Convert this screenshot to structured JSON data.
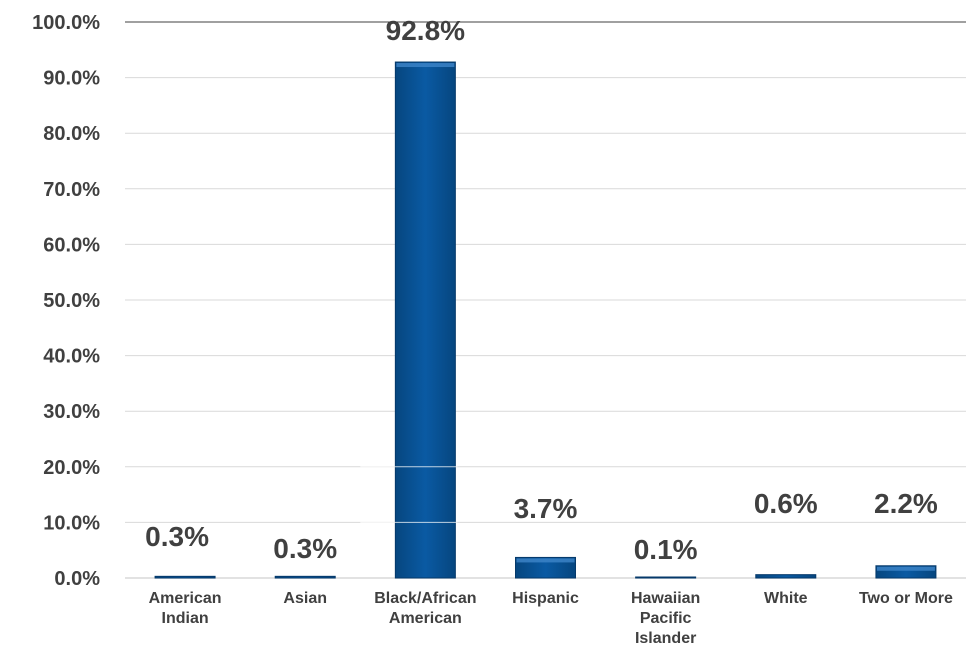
{
  "chart_data": {
    "type": "bar",
    "title": "",
    "xlabel": "",
    "ylabel": "",
    "ylim": [
      0,
      100
    ],
    "grid": true,
    "legend": "none",
    "bar_color": "#0a5aa3",
    "yticks": [
      "0.0%",
      "10.0%",
      "20.0%",
      "30.0%",
      "40.0%",
      "50.0%",
      "60.0%",
      "70.0%",
      "80.0%",
      "90.0%",
      "100.0%"
    ],
    "categories": [
      [
        "American",
        "Indian"
      ],
      [
        "Asian"
      ],
      [
        "Black/African",
        "American"
      ],
      [
        "Hispanic"
      ],
      [
        "Hawaiian",
        "Pacific",
        "Islander"
      ],
      [
        "White"
      ],
      [
        "Two or More"
      ]
    ],
    "values": [
      0.3,
      0.3,
      92.8,
      3.7,
      0.1,
      0.6,
      2.2
    ],
    "data_labels": [
      "0.3%",
      "0.3%",
      "92.8%",
      "3.7%",
      "0.1%",
      "0.6%",
      "2.2%"
    ]
  }
}
